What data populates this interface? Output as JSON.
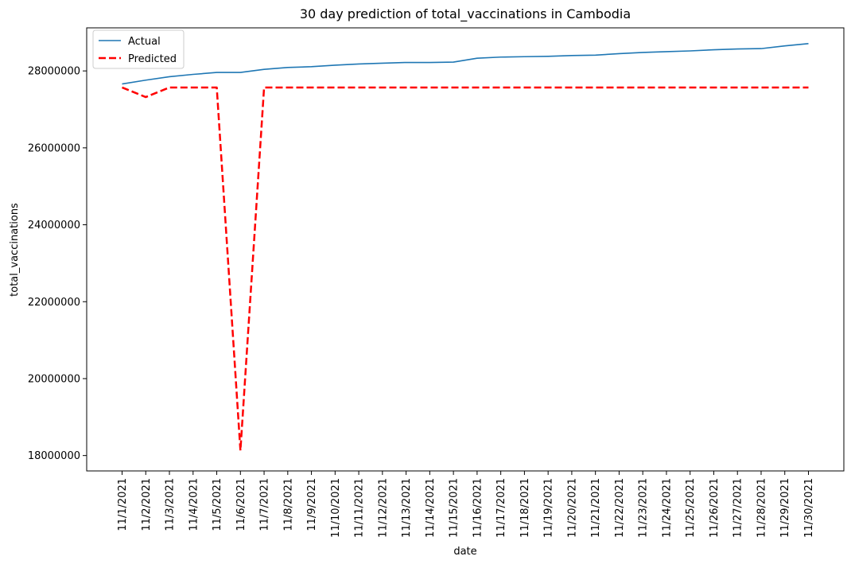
{
  "chart_data": {
    "type": "line",
    "title": "30 day prediction of total_vaccinations in Cambodia",
    "xlabel": "date",
    "ylabel": "total_vaccinations",
    "categories": [
      "11/1/2021",
      "11/2/2021",
      "11/3/2021",
      "11/4/2021",
      "11/5/2021",
      "11/6/2021",
      "11/7/2021",
      "11/8/2021",
      "11/9/2021",
      "11/10/2021",
      "11/11/2021",
      "11/12/2021",
      "11/13/2021",
      "11/14/2021",
      "11/15/2021",
      "11/16/2021",
      "11/17/2021",
      "11/18/2021",
      "11/19/2021",
      "11/20/2021",
      "11/21/2021",
      "11/22/2021",
      "11/23/2021",
      "11/24/2021",
      "11/25/2021",
      "11/26/2021",
      "11/27/2021",
      "11/28/2021",
      "11/29/2021",
      "11/30/2021"
    ],
    "yticks": [
      18000000,
      20000000,
      22000000,
      24000000,
      26000000,
      28000000
    ],
    "ytick_labels": [
      "18000000",
      "20000000",
      "22000000",
      "24000000",
      "26000000",
      "28000000"
    ],
    "ylim": [
      17600000,
      29120000
    ],
    "series": [
      {
        "name": "Actual",
        "color": "#1f77b4",
        "style": "solid",
        "values": [
          27660000,
          27760000,
          27850000,
          27910000,
          27960000,
          27960000,
          28040000,
          28090000,
          28110000,
          28150000,
          28180000,
          28200000,
          28220000,
          28220000,
          28230000,
          28330000,
          28360000,
          28370000,
          28380000,
          28400000,
          28410000,
          28450000,
          28480000,
          28500000,
          28520000,
          28550000,
          28570000,
          28580000,
          28650000,
          28710000
        ]
      },
      {
        "name": "Predicted",
        "color": "#ff0000",
        "style": "dashed",
        "values": [
          27570000,
          27320000,
          27570000,
          27570000,
          27570000,
          18130000,
          27570000,
          27570000,
          27570000,
          27570000,
          27570000,
          27570000,
          27570000,
          27570000,
          27570000,
          27570000,
          27570000,
          27570000,
          27570000,
          27570000,
          27570000,
          27570000,
          27570000,
          27570000,
          27570000,
          27570000,
          27570000,
          27570000,
          27570000,
          27570000
        ]
      }
    ],
    "legend_position": "top-left",
    "grid": false
  }
}
